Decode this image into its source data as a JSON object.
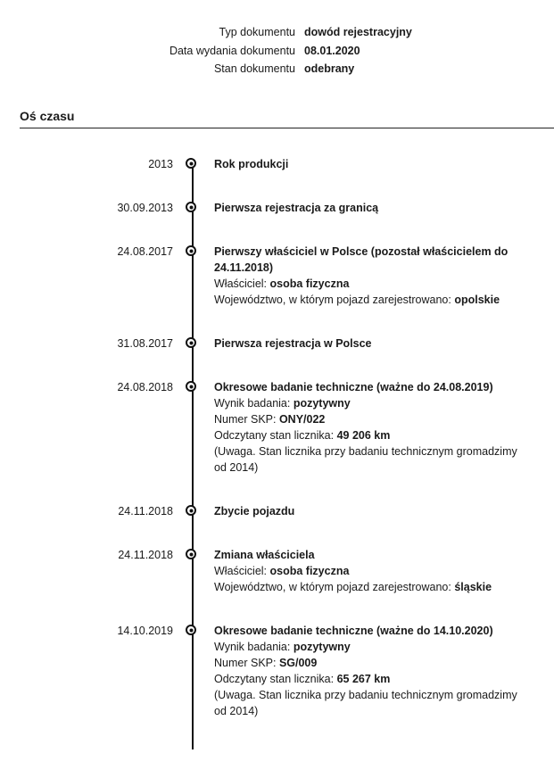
{
  "document_info": [
    {
      "label": "Typ dokumentu",
      "value": "dowód rejestracyjny"
    },
    {
      "label": "Data wydania dokumentu",
      "value": "08.01.2020"
    },
    {
      "label": "Stan dokumentu",
      "value": "odebrany"
    }
  ],
  "timeline": {
    "heading": "Oś czasu",
    "entries": [
      {
        "date": "2013",
        "title": "Rok produkcji"
      },
      {
        "date": "30.09.2013",
        "title": "Pierwsza rejestracja za granicą"
      },
      {
        "date": "24.08.2017",
        "title": "Pierwszy właściciel w Polsce (pozostał właścicielem do 24.11.2018)",
        "details": [
          {
            "label": "Właściciel: ",
            "value": "osoba fizyczna"
          },
          {
            "label": "Województwo, w którym pojazd zarejestrowano: ",
            "value": "opolskie"
          }
        ]
      },
      {
        "date": "31.08.2017",
        "title": "Pierwsza rejestracja w Polsce"
      },
      {
        "date": "24.08.2018",
        "title": "Okresowe badanie techniczne (ważne do 24.08.2019)",
        "details": [
          {
            "label": "Wynik badania: ",
            "value": "pozytywny"
          },
          {
            "label": "Numer SKP: ",
            "value": "ONY/022"
          },
          {
            "label": "Odczytany stan licznika: ",
            "value": "49 206 km"
          },
          {
            "label": "(Uwaga. Stan licznika przy badaniu technicznym gromadzimy od 2014)",
            "value": ""
          }
        ]
      },
      {
        "date": "24.11.2018",
        "title": "Zbycie pojazdu"
      },
      {
        "date": "24.11.2018",
        "title": "Zmiana właściciela",
        "details": [
          {
            "label": "Właściciel: ",
            "value": "osoba fizyczna"
          },
          {
            "label": "Województwo, w którym pojazd zarejestrowano: ",
            "value": "śląskie"
          }
        ]
      },
      {
        "date": "14.10.2019",
        "title": "Okresowe badanie techniczne (ważne do 14.10.2020)",
        "details": [
          {
            "label": "Wynik badania: ",
            "value": "pozytywny"
          },
          {
            "label": "Numer SKP: ",
            "value": "SG/009"
          },
          {
            "label": "Odczytany stan licznika: ",
            "value": "65 267 km"
          },
          {
            "label": "(Uwaga. Stan licznika przy badaniu technicznym gromadzimy od 2014)",
            "value": ""
          }
        ]
      }
    ]
  }
}
